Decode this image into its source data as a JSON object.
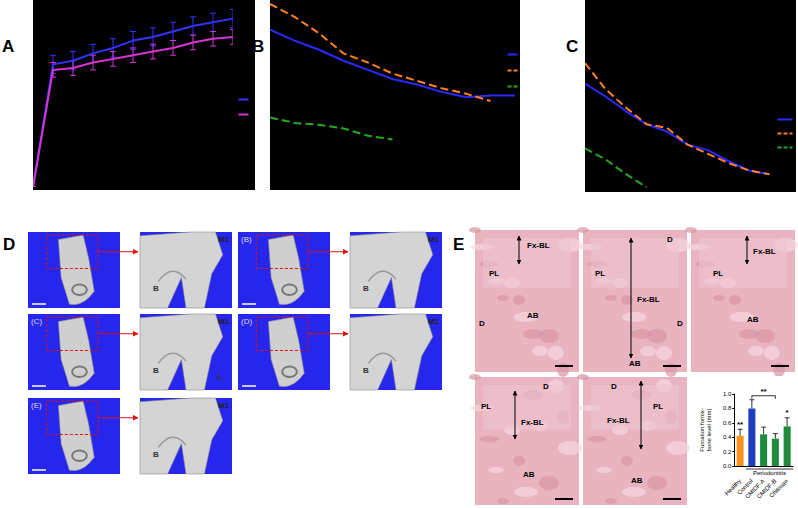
{
  "chart_data": [
    {
      "panel": "A",
      "type": "line",
      "x": [
        0,
        1,
        2,
        3,
        4,
        5,
        6,
        7,
        8,
        9,
        10
      ],
      "xlim": [
        0,
        10
      ],
      "ylim": [
        0,
        100
      ],
      "tick_labels": false,
      "series": [
        {
          "color": "#3333ff",
          "values": [
            0,
            67,
            69,
            73,
            76,
            80,
            82,
            85,
            88,
            90,
            92
          ],
          "errors": [
            0,
            5,
            5,
            5,
            5,
            5,
            5,
            5,
            5,
            5,
            5
          ]
        },
        {
          "color": "#d633d6",
          "values": [
            0,
            64,
            65,
            68,
            70,
            72,
            74,
            76,
            79,
            81,
            82
          ],
          "errors": [
            0,
            4,
            4,
            4,
            4,
            4,
            4,
            4,
            4,
            4,
            4
          ]
        }
      ]
    },
    {
      "panel": "B",
      "type": "line",
      "x": [
        0,
        1,
        2,
        3,
        4,
        5,
        6,
        7,
        8,
        9,
        10
      ],
      "xlim": [
        0,
        10
      ],
      "ylim": [
        0,
        100
      ],
      "tick_labels": false,
      "series": [
        {
          "color": "#2a2aff",
          "line_style": "solid",
          "values": [
            86,
            80,
            75,
            69,
            64,
            59,
            56,
            52,
            49,
            50,
            50
          ]
        },
        {
          "color": "#ff7f27",
          "line_style": "dashed",
          "values": [
            100,
            93,
            84,
            73,
            68,
            62,
            58,
            54,
            51,
            47,
            null
          ]
        },
        {
          "color": "#22aa22",
          "line_style": "dashed",
          "values": [
            38,
            35,
            34,
            32,
            28,
            26,
            null,
            null,
            null,
            null,
            null
          ]
        }
      ]
    },
    {
      "panel": "C",
      "type": "line",
      "x": [
        0,
        1,
        2,
        3,
        4,
        5,
        6,
        7,
        8,
        9
      ],
      "xlim": [
        0,
        10
      ],
      "ylim": [
        0,
        100
      ],
      "tick_labels": false,
      "series": [
        {
          "color": "#2a2aff",
          "line_style": "solid",
          "values": [
            57,
            50,
            42,
            35,
            31,
            24,
            21,
            15,
            10,
            8
          ]
        },
        {
          "color": "#ff7f27",
          "line_style": "dashed",
          "values": [
            68,
            54,
            44,
            35,
            33,
            24,
            19,
            14,
            10,
            8
          ]
        },
        {
          "color": "#22aa22",
          "line_style": "dashed",
          "values": [
            22,
            16,
            8,
            1,
            null,
            null,
            null,
            null,
            null,
            null
          ]
        }
      ]
    },
    {
      "type": "bar",
      "categories": [
        "Healthy",
        "Control",
        "CMIDF-A",
        "CMIDF-B",
        "Chitosan"
      ],
      "values": [
        0.42,
        0.8,
        0.44,
        0.38,
        0.55
      ],
      "errors": [
        0.09,
        0.12,
        0.1,
        0.07,
        0.12
      ],
      "colors": [
        "#f7931e",
        "#1f3dbf",
        "#1e8c3a",
        "#1e8c3a",
        "#1e8c3a"
      ],
      "ylabel": "Furcation fornix-bone level (mm)",
      "ylim": [
        0,
        1
      ],
      "yticks": [
        {
          "value": 0,
          "label": "0.0"
        },
        {
          "value": 0.2,
          "label": "0.2"
        },
        {
          "value": 0.4,
          "label": "0.4"
        },
        {
          "value": 0.6,
          "label": "0.6"
        },
        {
          "value": 0.8,
          "label": "0.8"
        },
        {
          "value": 1,
          "label": "1.0"
        }
      ],
      "annotations": [
        {
          "text": "**",
          "category": "Healthy"
        },
        {
          "text": "**",
          "from": "Control",
          "to": "CMIDF-B"
        },
        {
          "text": "*",
          "category": "Chitosan"
        }
      ],
      "group": {
        "label": "Periodontitis",
        "categories": [
          "Control",
          "CMIDF-A",
          "CMIDF-B",
          "Chitosan"
        ]
      }
    }
  ],
  "micro_ct": {
    "letter": "D",
    "views": [
      {
        "zoom_label": "M1",
        "marks": [
          "B"
        ]
      },
      {
        "label": "(B)",
        "zoom_label": "M1",
        "marks": [
          "B"
        ]
      },
      {
        "label": "(C)",
        "zoom_label": "M1",
        "marks": [
          "B",
          "L"
        ]
      },
      {
        "label": "(D)",
        "zoom_label": "M1",
        "marks": [
          "B"
        ]
      },
      {
        "label": "(E)",
        "zoom_label": "M1",
        "marks": [
          "B"
        ]
      }
    ]
  },
  "histology": {
    "letter": "E",
    "images": [
      {
        "labels": [
          "Fx-BL",
          "PL",
          "D",
          "AB"
        ]
      },
      {
        "labels": [
          "D",
          "PL",
          "Fx-BL",
          "D",
          "AB"
        ]
      },
      {
        "labels": [
          "Fx-BL",
          "PL",
          "AB"
        ]
      },
      {
        "labels": [
          "D",
          "PL",
          "Fx-BL",
          "AB"
        ]
      },
      {
        "labels": [
          "D",
          "Fx-BL",
          "PL",
          "AB"
        ]
      }
    ]
  }
}
